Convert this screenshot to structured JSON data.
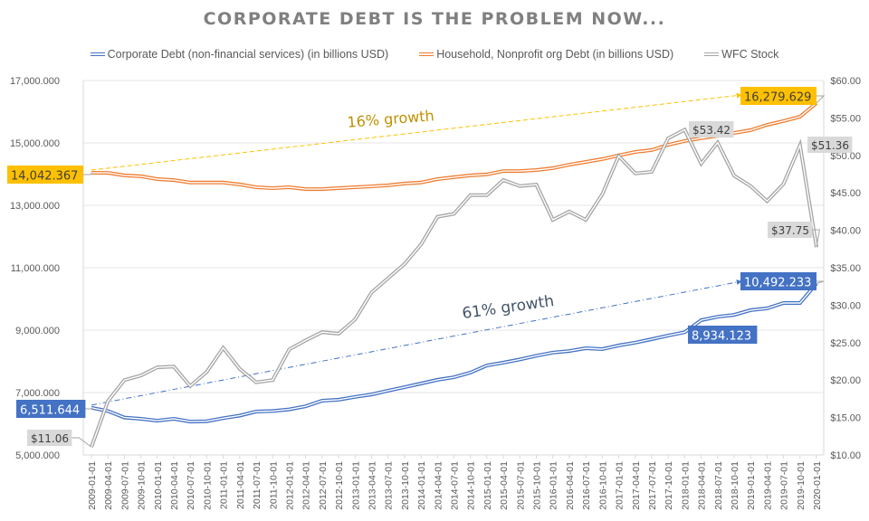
{
  "chart_data": {
    "type": "line",
    "title": "CORPORATE DEBT IS THE PROBLEM NOW...",
    "x": [
      "2009-01-01",
      "2009-04-01",
      "2009-07-01",
      "2009-10-01",
      "2010-01-01",
      "2010-04-01",
      "2010-07-01",
      "2010-10-01",
      "2011-01-01",
      "2011-04-01",
      "2011-07-01",
      "2011-10-01",
      "2012-01-01",
      "2012-04-01",
      "2012-07-01",
      "2012-10-01",
      "2013-01-01",
      "2013-04-01",
      "2013-07-01",
      "2013-10-01",
      "2014-01-01",
      "2014-04-01",
      "2014-07-01",
      "2014-10-01",
      "2015-01-01",
      "2015-04-01",
      "2015-07-01",
      "2015-10-01",
      "2016-01-01",
      "2016-04-01",
      "2016-07-01",
      "2016-10-01",
      "2017-01-01",
      "2017-04-01",
      "2017-07-01",
      "2017-10-01",
      "2018-01-01",
      "2018-04-01",
      "2018-07-01",
      "2018-10-01",
      "2019-01-01",
      "2019-04-01",
      "2019-07-01",
      "2019-10-01",
      "2020-01-01"
    ],
    "series": [
      {
        "name": "Corporate Debt (non-financial services) (in billions USD)",
        "axis": "left",
        "color": "#4472C4",
        "values": [
          6511.644,
          6410,
          6200,
          6160,
          6100,
          6160,
          6070,
          6080,
          6180,
          6260,
          6390,
          6410,
          6460,
          6560,
          6740,
          6770,
          6860,
          6940,
          7060,
          7170,
          7290,
          7410,
          7490,
          7640,
          7870,
          7960,
          8060,
          8180,
          8280,
          8330,
          8420,
          8390,
          8510,
          8600,
          8710,
          8830,
          8934.123,
          9320,
          9430,
          9490,
          9640,
          9700,
          9870,
          9870,
          10492.233
        ]
      },
      {
        "name": "Household, Nonprofit org Debt (in billions USD)",
        "axis": "left",
        "color": "#ED7D31",
        "values": [
          14042.367,
          14040,
          13960,
          13930,
          13840,
          13810,
          13730,
          13730,
          13730,
          13670,
          13580,
          13550,
          13580,
          13520,
          13520,
          13550,
          13580,
          13610,
          13640,
          13700,
          13730,
          13840,
          13900,
          13960,
          13990,
          14100,
          14100,
          14130,
          14190,
          14300,
          14390,
          14480,
          14600,
          14710,
          14770,
          14940,
          15060,
          15150,
          15230,
          15320,
          15410,
          15580,
          15700,
          15840,
          16279.629
        ]
      },
      {
        "name": "WFC Stock",
        "axis": "right",
        "color": "#A5A5A5",
        "values": [
          11.06,
          17.2,
          20.0,
          20.6,
          21.7,
          21.8,
          19.2,
          21.1,
          24.3,
          21.5,
          19.7,
          20.0,
          24.1,
          25.3,
          26.4,
          26.2,
          28.1,
          31.7,
          33.6,
          35.5,
          38.1,
          41.8,
          42.2,
          44.7,
          44.7,
          46.7,
          45.9,
          46.1,
          41.4,
          42.5,
          41.4,
          44.8,
          49.9,
          47.6,
          47.8,
          52.3,
          53.42,
          48.9,
          51.7,
          47.3,
          45.9,
          43.9,
          46.2,
          51.36,
          37.75
        ]
      }
    ],
    "y_left": {
      "range": [
        5000,
        17000
      ],
      "ticks": [
        "5,000.000",
        "7,000.000",
        "9,000.000",
        "11,000.000",
        "13,000.000",
        "15,000.000",
        "17,000.000"
      ],
      "tick_values": [
        5000,
        7000,
        9000,
        11000,
        13000,
        15000,
        17000
      ]
    },
    "y_right": {
      "range": [
        10,
        60
      ],
      "ticks": [
        "$10.00",
        "$15.00",
        "$20.00",
        "$25.00",
        "$30.00",
        "$35.00",
        "$40.00",
        "$45.00",
        "$50.00",
        "$55.00",
        "$60.00"
      ],
      "tick_values": [
        10,
        15,
        20,
        25,
        30,
        35,
        40,
        45,
        50,
        55,
        60
      ]
    },
    "grid": true,
    "legend": "top",
    "data_labels": [
      {
        "series": 0,
        "index": 0,
        "text": "6,511.644",
        "bg": "#4472C4",
        "fg": "#ffffff",
        "side": "left"
      },
      {
        "series": 0,
        "index": 36,
        "text": "8,934.123",
        "bg": "#4472C4",
        "fg": "#ffffff",
        "side": "below"
      },
      {
        "series": 0,
        "index": 44,
        "text": "10,492.233",
        "bg": "#4472C4",
        "fg": "#ffffff",
        "side": "left-up"
      },
      {
        "series": 1,
        "index": 0,
        "text": "14,042.367",
        "bg": "#FFC000",
        "fg": "#404040",
        "side": "left"
      },
      {
        "series": 1,
        "index": 44,
        "text": "16,279.629",
        "bg": "#FFC000",
        "fg": "#404040",
        "side": "left-up"
      },
      {
        "series": 2,
        "index": 0,
        "text": "$11.06",
        "bg": "#D9D9D9",
        "fg": "#404040",
        "side": "left-up"
      },
      {
        "series": 2,
        "index": 36,
        "text": "$53.42",
        "bg": "#D9D9D9",
        "fg": "#404040",
        "side": "right"
      },
      {
        "series": 2,
        "index": 43,
        "text": "$51.36",
        "bg": "#D9D9D9",
        "fg": "#404040",
        "side": "right"
      },
      {
        "series": 2,
        "index": 44,
        "text": "$37.75",
        "bg": "#D9D9D9",
        "fg": "#404040",
        "side": "left"
      }
    ],
    "annotations": [
      {
        "text": "16% growth",
        "color": "#BF9000",
        "from": {
          "index": 0,
          "value": 14042.367
        },
        "to": {
          "index": 40,
          "value": 16279.629
        },
        "line_color": "#FFC000",
        "style": "dashed"
      },
      {
        "text": "61% growth",
        "color": "#44546A",
        "from": {
          "index": 0,
          "value": 6511.644
        },
        "to": {
          "index": 40,
          "value": 10492.233
        },
        "line_color": "#4472C4",
        "style": "dash-dot"
      }
    ]
  }
}
